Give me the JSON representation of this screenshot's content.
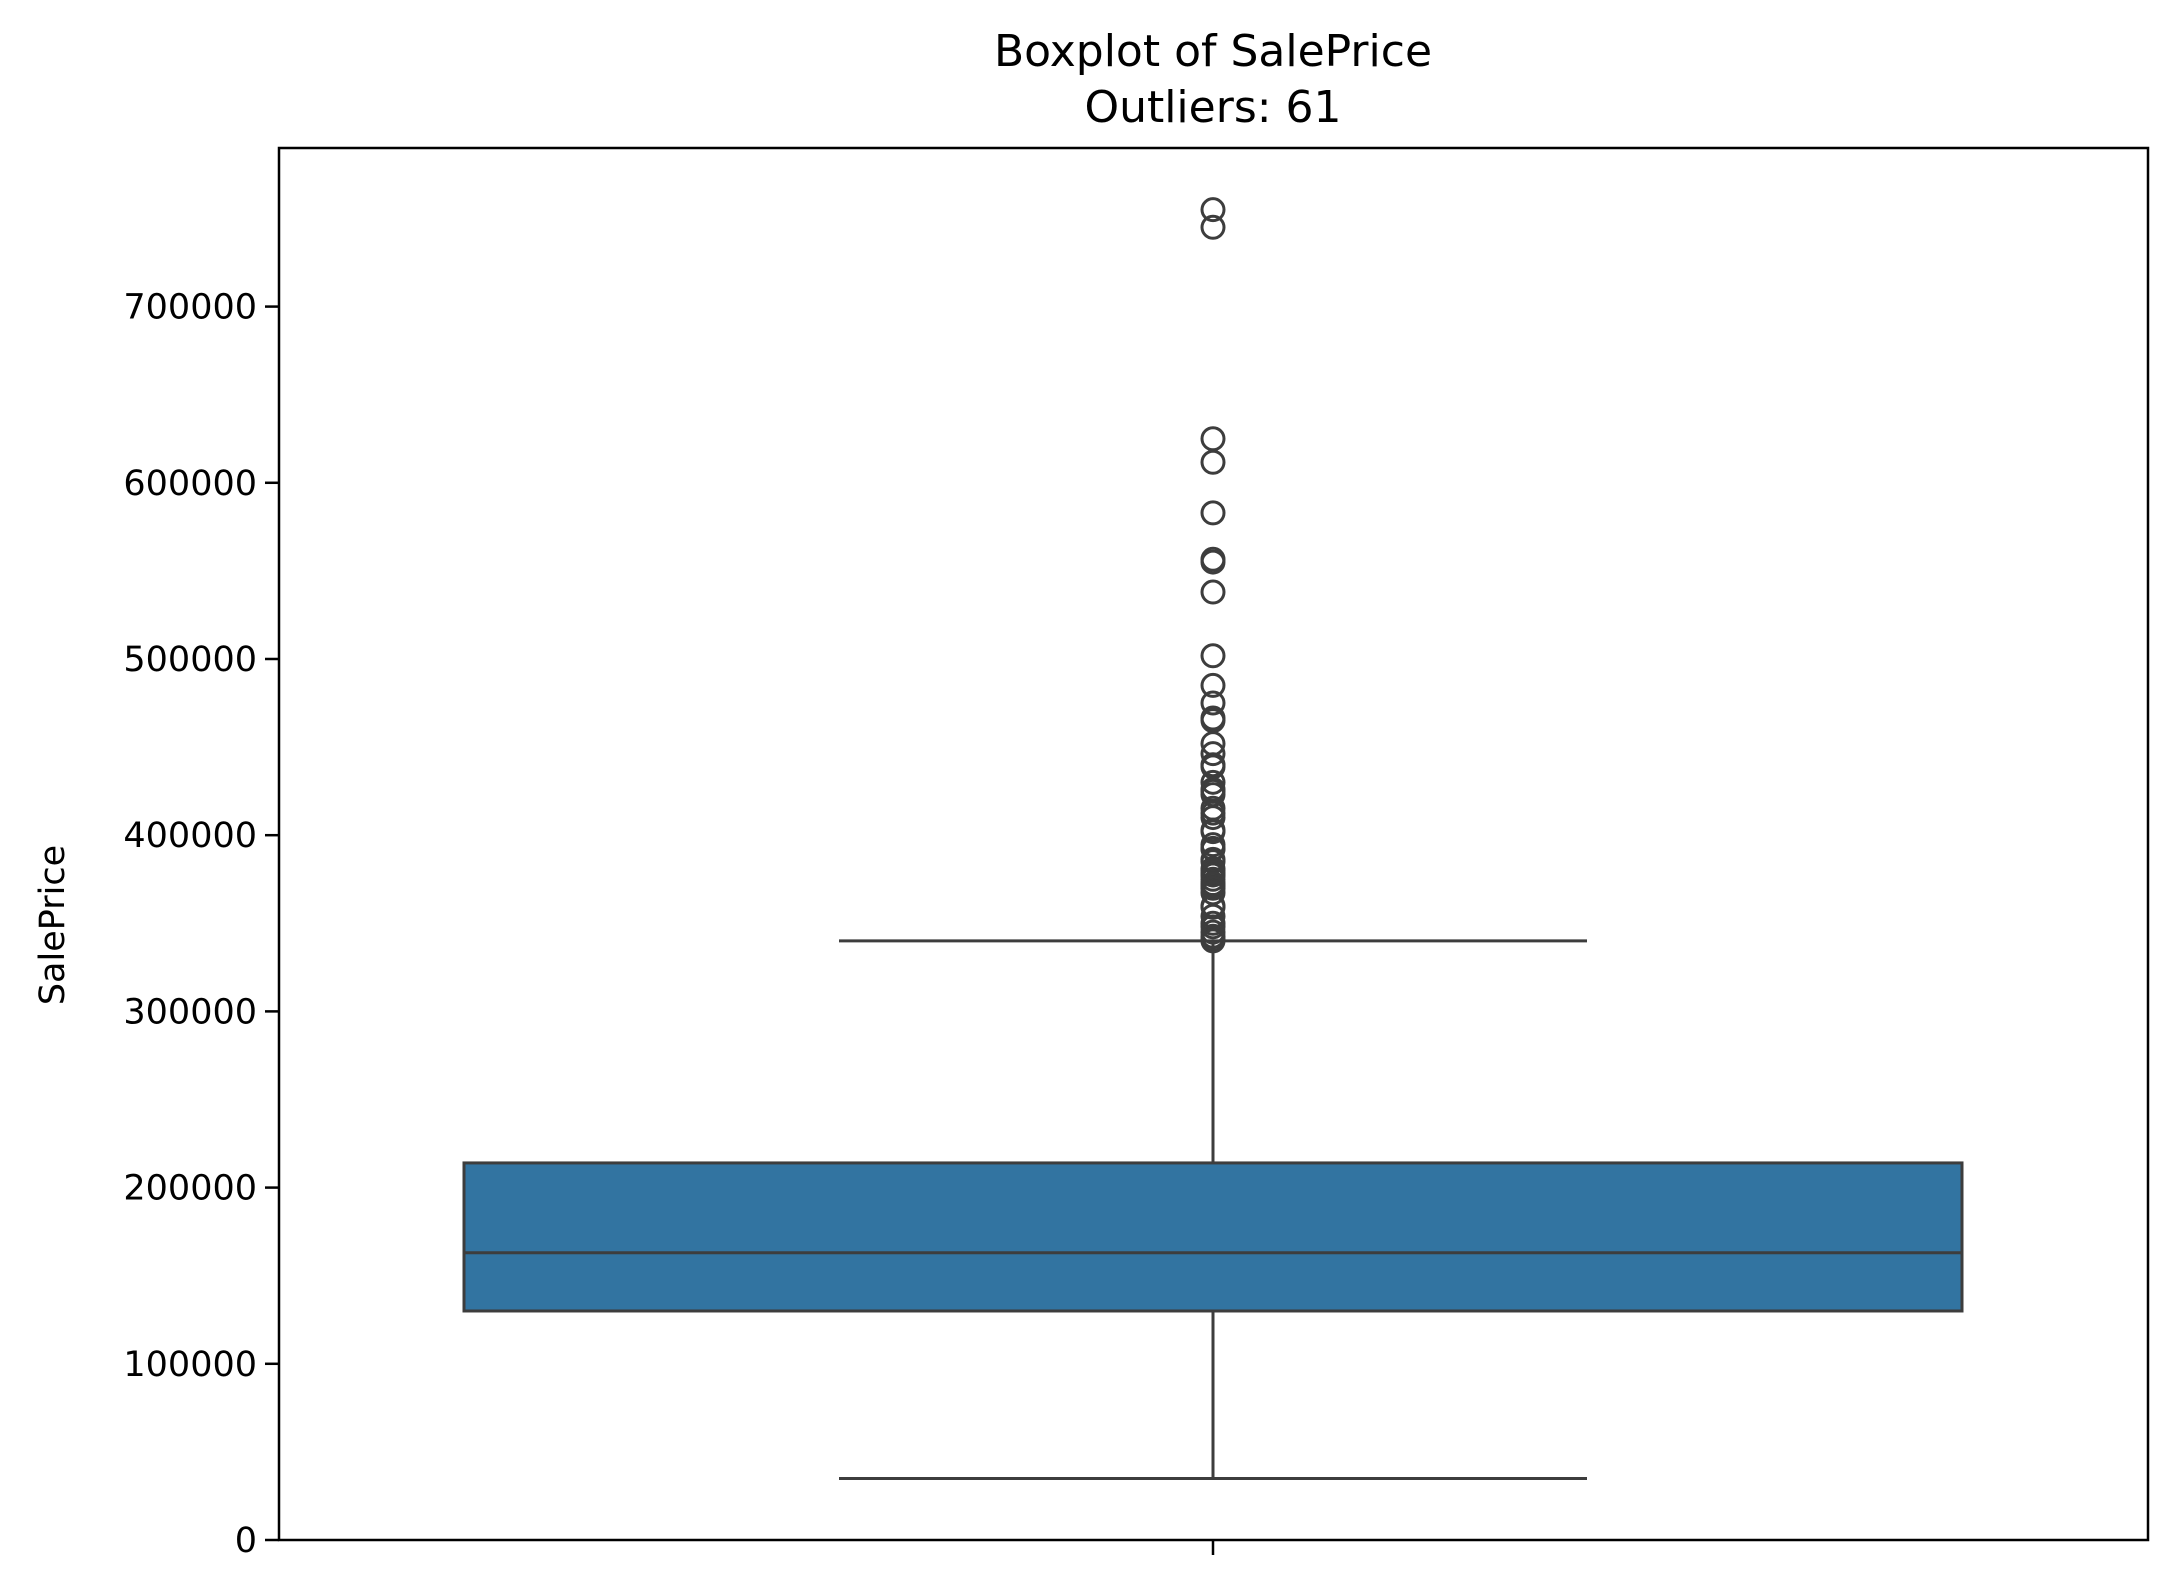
{
  "colors": {
    "box_fill": "#3274a1",
    "line": "#3d3d3d",
    "axes": "#000000",
    "background": "#ffffff"
  },
  "chart_data": {
    "type": "box",
    "title": "Boxplot of SalePrice",
    "subtitle": "Outliers: 61",
    "xlabel": "",
    "ylabel": "SalePrice",
    "ylim": [
      0,
      790000
    ],
    "yticks": [
      0,
      100000,
      200000,
      300000,
      400000,
      500000,
      600000,
      700000
    ],
    "ytick_labels": [
      "0",
      "100000",
      "200000",
      "300000",
      "400000",
      "500000",
      "600000",
      "700000"
    ],
    "grid": false,
    "box": {
      "whisker_low": 34900,
      "q1": 129975,
      "median": 163000,
      "q3": 214000,
      "whisker_high": 340000
    },
    "outliers": [
      755000,
      745000,
      625000,
      611657,
      582933,
      556581,
      555000,
      538000,
      501837,
      485000,
      475000,
      466500,
      465000,
      451950,
      446261,
      440000,
      438780,
      430000,
      426000,
      424870,
      423000,
      415298,
      412500,
      410000,
      402861,
      402000,
      394617,
      392500,
      392000,
      386250,
      385000,
      381000,
      380000,
      378500,
      377500,
      377426,
      375000,
      372500,
      372402,
      370878,
      369900,
      367294,
      360000,
      359100,
      354000,
      350000,
      348000,
      345000,
      342643,
      341000,
      340000
    ]
  }
}
